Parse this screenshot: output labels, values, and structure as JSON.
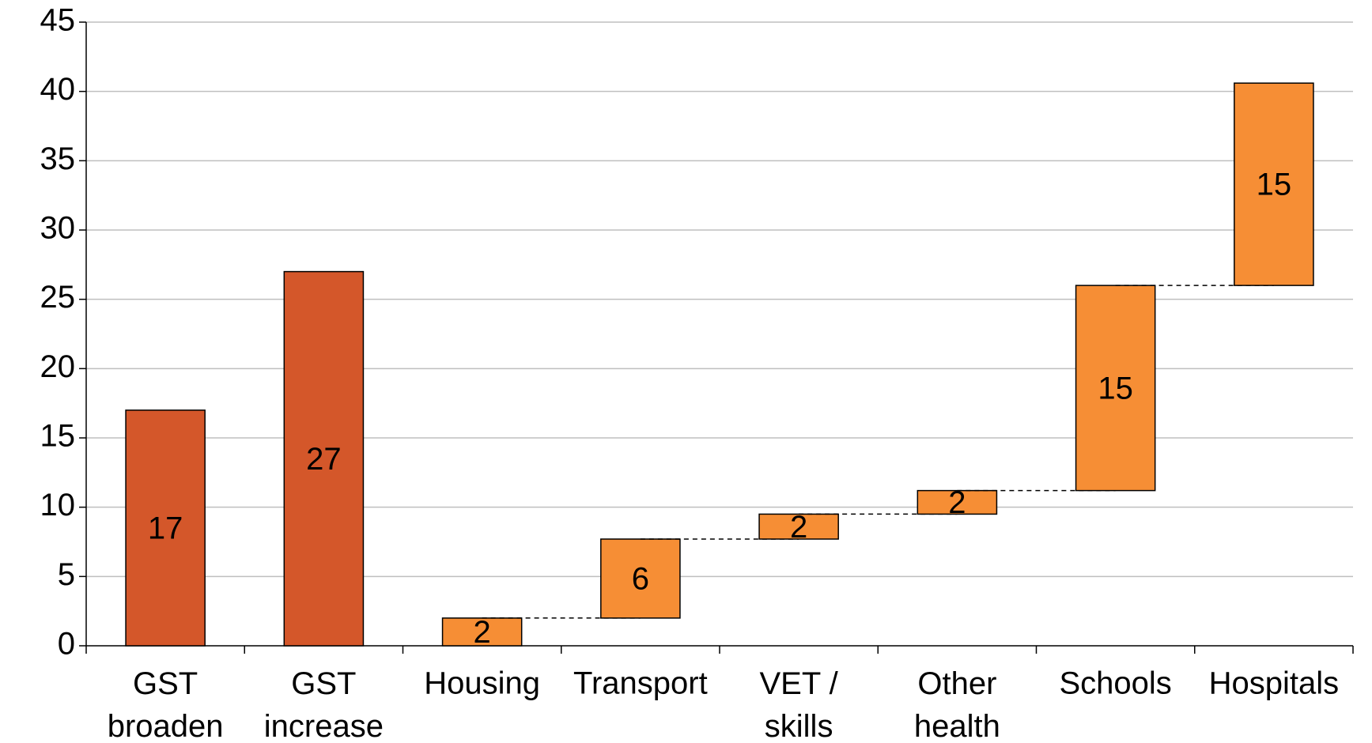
{
  "chart_data": {
    "type": "waterfall",
    "categories": [
      "GST broaden",
      "GST increase",
      "Housing",
      "Transport",
      "VET / skills",
      "Other health",
      "Schools",
      "Hospitals"
    ],
    "values": [
      17,
      27,
      2,
      5.7,
      1.8,
      1.7,
      14.8,
      14.6
    ],
    "value_labels": [
      "17",
      "27",
      "2",
      "6",
      "2",
      "2",
      "15",
      "15"
    ],
    "measure": [
      "absolute",
      "absolute",
      "relative",
      "relative",
      "relative",
      "relative",
      "relative",
      "relative"
    ],
    "colors": [
      "#d4572a",
      "#d4572a",
      "#f68e35",
      "#f68e35",
      "#f68e35",
      "#f68e35",
      "#f68e35",
      "#f68e35"
    ],
    "ylim": [
      0,
      45
    ],
    "yticks": [
      0,
      5,
      10,
      15,
      20,
      25,
      30,
      35,
      40,
      45
    ],
    "grid": true
  }
}
